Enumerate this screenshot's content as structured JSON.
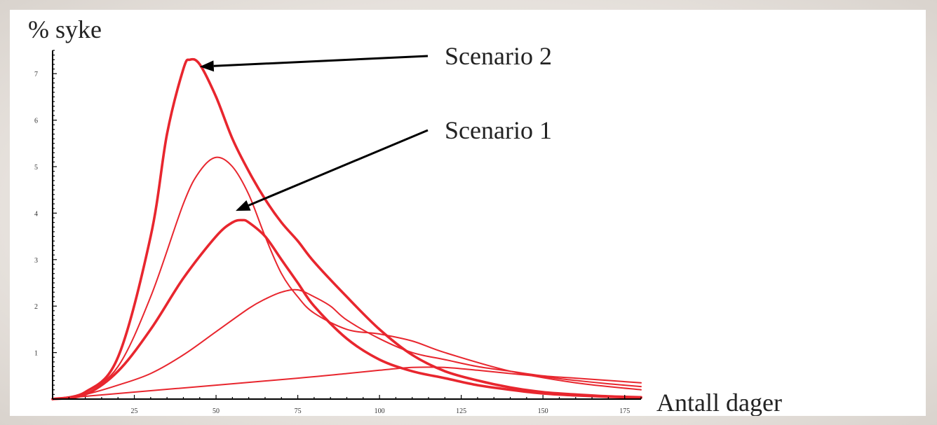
{
  "chart_data": {
    "type": "line",
    "title": "",
    "ylabel": "% syke",
    "xlabel": "Antall dager",
    "xlim": [
      0,
      180
    ],
    "ylim": [
      0,
      7.5
    ],
    "x_ticks": [
      25,
      50,
      75,
      100,
      125,
      150,
      175
    ],
    "x_tick_labels": [
      "25",
      "50",
      "75",
      "100",
      "125",
      "150",
      "175"
    ],
    "y_ticks": [
      1,
      2,
      3,
      4,
      5,
      6,
      7
    ],
    "y_tick_labels": [
      "1",
      "2",
      "3",
      "4",
      "5",
      "6",
      "7"
    ],
    "grid": false,
    "color": "#e8262e",
    "series": [
      {
        "emphasis": true,
        "x": [
          0,
          10,
          20,
          30,
          35,
          40,
          42,
          45,
          50,
          55,
          60,
          65,
          70,
          75,
          80,
          90,
          100,
          110,
          120,
          130,
          140,
          150,
          160,
          170,
          180
        ],
        "y": [
          0,
          0.15,
          0.9,
          3.5,
          5.7,
          7.1,
          7.3,
          7.2,
          6.5,
          5.6,
          4.9,
          4.3,
          3.8,
          3.4,
          2.95,
          2.2,
          1.5,
          0.95,
          0.6,
          0.4,
          0.25,
          0.15,
          0.1,
          0.06,
          0.04
        ]
      },
      {
        "emphasis": false,
        "x": [
          0,
          10,
          20,
          30,
          40,
          45,
          50,
          55,
          60,
          65,
          70,
          75,
          80,
          90,
          100,
          110,
          120,
          140,
          160,
          180
        ],
        "y": [
          0,
          0.15,
          0.7,
          2.2,
          4.2,
          4.9,
          5.2,
          5.0,
          4.4,
          3.5,
          2.7,
          2.2,
          1.85,
          1.5,
          1.4,
          1.25,
          1.0,
          0.6,
          0.35,
          0.2
        ]
      },
      {
        "emphasis": true,
        "x": [
          0,
          10,
          20,
          30,
          40,
          50,
          55,
          58,
          60,
          65,
          70,
          75,
          80,
          90,
          100,
          110,
          120,
          130,
          140,
          150,
          160,
          170,
          180
        ],
        "y": [
          0,
          0.1,
          0.6,
          1.5,
          2.6,
          3.5,
          3.8,
          3.85,
          3.8,
          3.5,
          3.0,
          2.5,
          2.0,
          1.3,
          0.85,
          0.6,
          0.45,
          0.3,
          0.2,
          0.12,
          0.08,
          0.05,
          0.03
        ]
      },
      {
        "emphasis": false,
        "x": [
          0,
          10,
          20,
          30,
          40,
          50,
          60,
          65,
          70,
          75,
          80,
          85,
          90,
          100,
          110,
          120,
          130,
          140,
          150,
          160,
          170,
          180
        ],
        "y": [
          0,
          0.1,
          0.3,
          0.55,
          0.95,
          1.45,
          1.95,
          2.15,
          2.3,
          2.35,
          2.2,
          2.0,
          1.7,
          1.3,
          1.0,
          0.85,
          0.7,
          0.6,
          0.5,
          0.45,
          0.4,
          0.35
        ]
      },
      {
        "emphasis": false,
        "x": [
          0,
          25,
          50,
          75,
          90,
          100,
          110,
          120,
          130,
          140,
          150,
          160,
          170,
          180
        ],
        "y": [
          0,
          0.15,
          0.3,
          0.45,
          0.55,
          0.62,
          0.68,
          0.68,
          0.62,
          0.55,
          0.48,
          0.4,
          0.33,
          0.27
        ]
      }
    ],
    "annotations": [
      {
        "text": "Scenario 2",
        "target_x": 45,
        "target_y": 7.15
      },
      {
        "text": "Scenario 1",
        "target_x": 56,
        "target_y": 4.05
      }
    ]
  }
}
